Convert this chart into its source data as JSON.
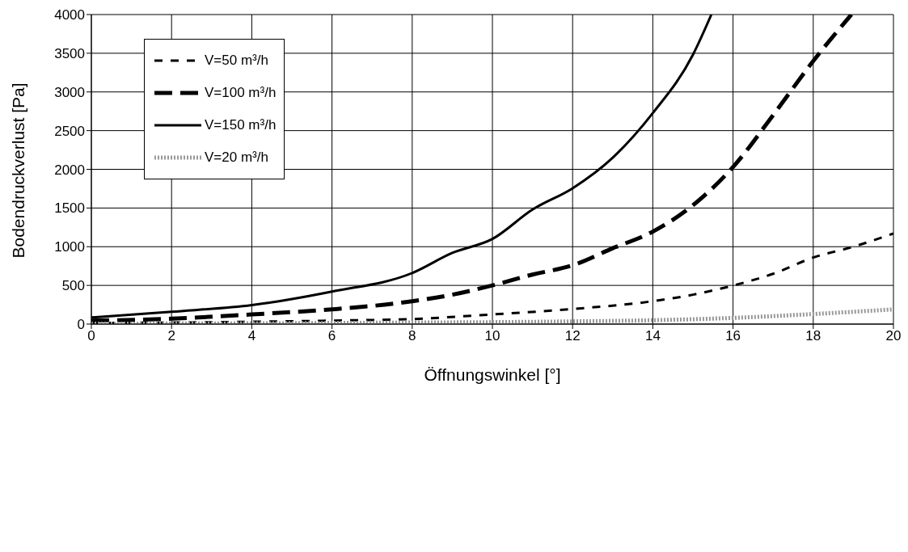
{
  "chart_data": {
    "type": "line",
    "xlabel": "Öffnungswinkel [°]",
    "ylabel": "Bodendruckverlust [Pa]",
    "xlim": [
      0,
      20
    ],
    "xticks": [
      0,
      2,
      4,
      6,
      8,
      10,
      12,
      14,
      16,
      18,
      20
    ],
    "ylim": [
      0,
      4000
    ],
    "yticks": [
      0,
      500,
      1000,
      1500,
      2000,
      2500,
      3000,
      3500,
      4000
    ],
    "grid": true,
    "legend": "top left",
    "marker": "none",
    "series": [
      {
        "name": "V=50 m³/h",
        "color": "#000000",
        "line_style": "dashed",
        "x": [
          0,
          2,
          4,
          6,
          8,
          10,
          12,
          14,
          15,
          16,
          17,
          18,
          19,
          20
        ],
        "values": [
          15,
          20,
          30,
          45,
          65,
          125,
          195,
          296,
          380,
          498,
          650,
          860,
          1000,
          1170
        ]
      },
      {
        "name": "V=100 m³/h",
        "color": "#000000",
        "line_style": "dashed",
        "x": [
          0,
          2,
          4,
          6,
          8,
          9,
          10,
          11,
          12,
          13,
          14,
          15,
          16,
          17,
          18,
          18.95
        ],
        "values": [
          45,
          70,
          125,
          190,
          295,
          380,
          500,
          640,
          760,
          980,
          1195,
          1535,
          2030,
          2700,
          3400,
          4000
        ]
      },
      {
        "name": "V=150 m³/h",
        "color": "#000000",
        "line_style": "solid",
        "x": [
          0,
          2,
          4,
          6,
          8,
          9,
          10,
          11,
          12,
          13,
          14,
          15,
          15.46
        ],
        "values": [
          85,
          160,
          245,
          420,
          660,
          920,
          1100,
          1480,
          1755,
          2150,
          2727,
          3480,
          4000
        ]
      },
      {
        "name": "V=20 m³/h",
        "color": "#999999",
        "line_style": "dotted",
        "x": [
          0,
          4,
          8,
          10,
          12,
          14,
          16,
          18,
          20
        ],
        "values": [
          5,
          10,
          20,
          25,
          35,
          50,
          80,
          130,
          190
        ]
      }
    ]
  }
}
